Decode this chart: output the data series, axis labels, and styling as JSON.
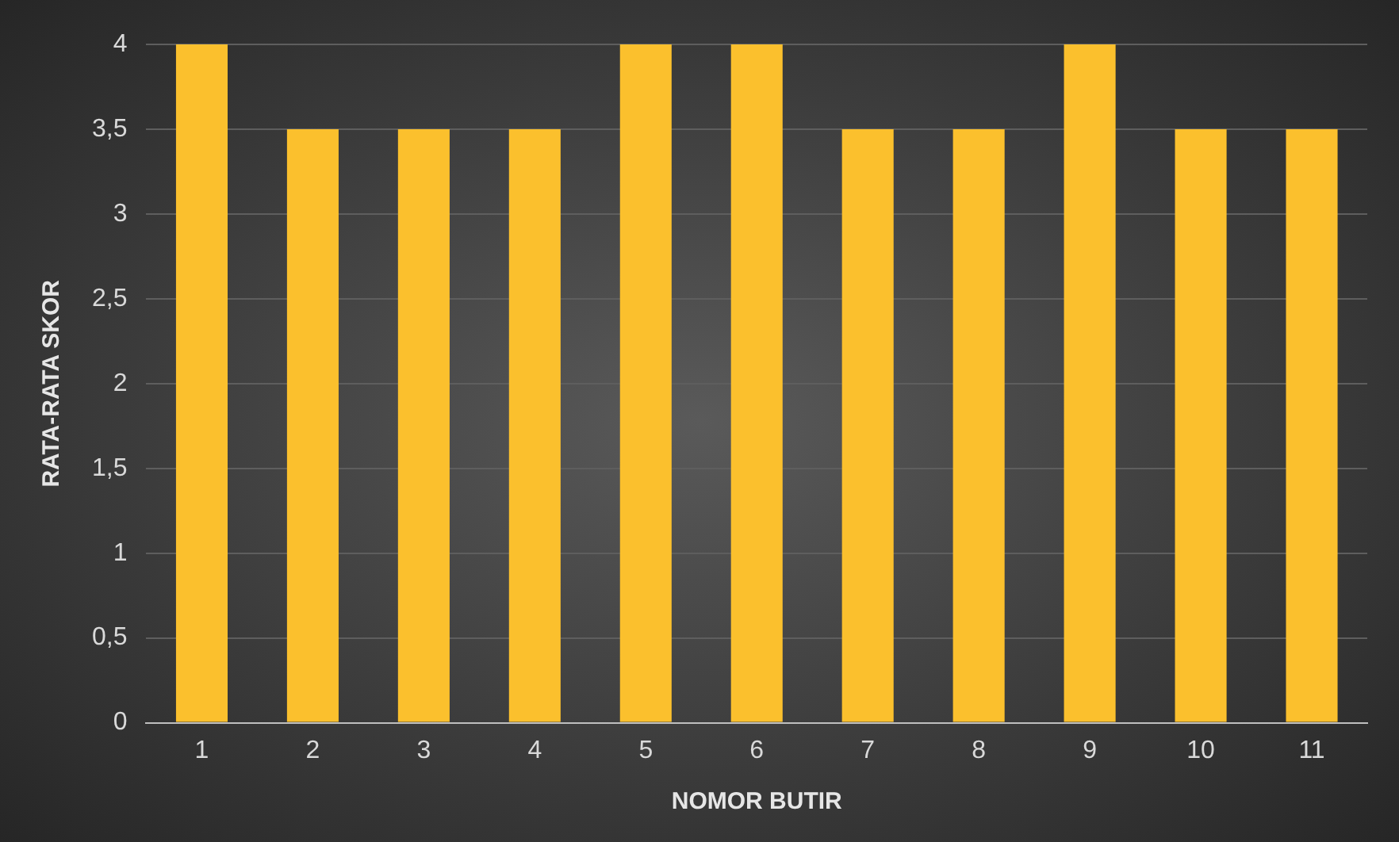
{
  "chart_data": {
    "type": "bar",
    "xlabel": "NOMOR BUTIR",
    "ylabel": "RATA-RATA SKOR",
    "categories": [
      "1",
      "2",
      "3",
      "4",
      "5",
      "6",
      "7",
      "8",
      "9",
      "10",
      "11"
    ],
    "values": [
      4,
      3.5,
      3.5,
      3.5,
      4,
      4,
      3.5,
      3.5,
      4,
      3.5,
      3.5
    ],
    "color": "#fbc02d",
    "ylim": [
      0,
      4
    ],
    "yticks": [
      0,
      {
        "value": 0.5,
        "label": "0,5"
      },
      1,
      {
        "value": 1.5,
        "label": "1,5"
      },
      2,
      {
        "value": 2.5,
        "label": "2,5"
      },
      3,
      {
        "value": 3.5,
        "label": "3,5"
      },
      4
    ],
    "grid": "y",
    "legend": false
  }
}
